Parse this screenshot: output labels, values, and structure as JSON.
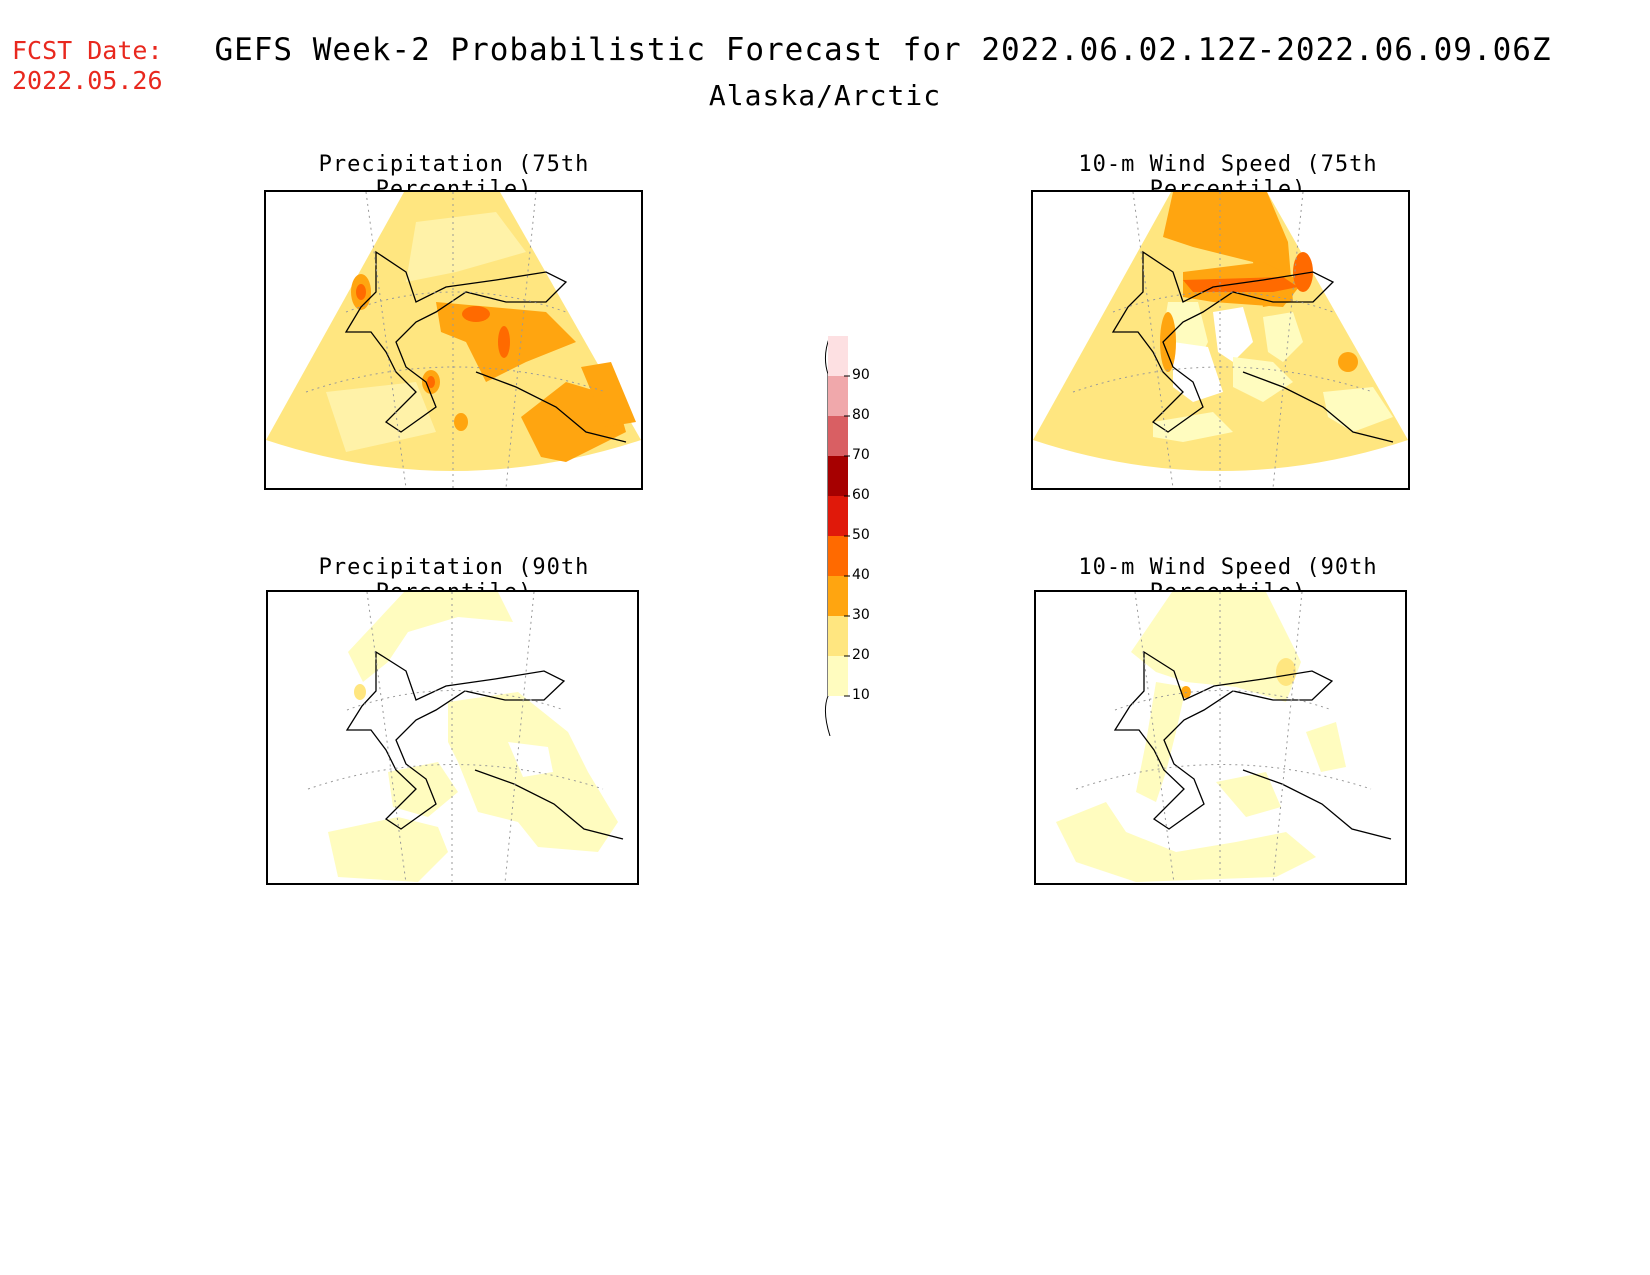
{
  "forecast_date": {
    "label": "FCST Date:",
    "value": "2022.05.26"
  },
  "title": "GEFS Week-2 Probabilistic Forecast for 2022.06.02.12Z-2022.06.09.06Z",
  "region": "Alaska/Arctic",
  "panels": [
    {
      "id": "precip75",
      "title": "Precipitation (75th Percentile)"
    },
    {
      "id": "wind75",
      "title": "10-m Wind Speed (75th Percentile)"
    },
    {
      "id": "precip90",
      "title": "Precipitation (90th Percentile)"
    },
    {
      "id": "wind90",
      "title": "10-m Wind Speed (90th Percentile)"
    }
  ],
  "legend": {
    "levels": [
      "10",
      "20",
      "30",
      "40",
      "50",
      "60",
      "70",
      "80",
      "90"
    ],
    "colors": [
      "#fffcbf",
      "#ffe680",
      "#ffa510",
      "#ff6a00",
      "#e0190a",
      "#a60000",
      "#d95f63",
      "#f0a8ab",
      "#fde0e2"
    ]
  }
}
